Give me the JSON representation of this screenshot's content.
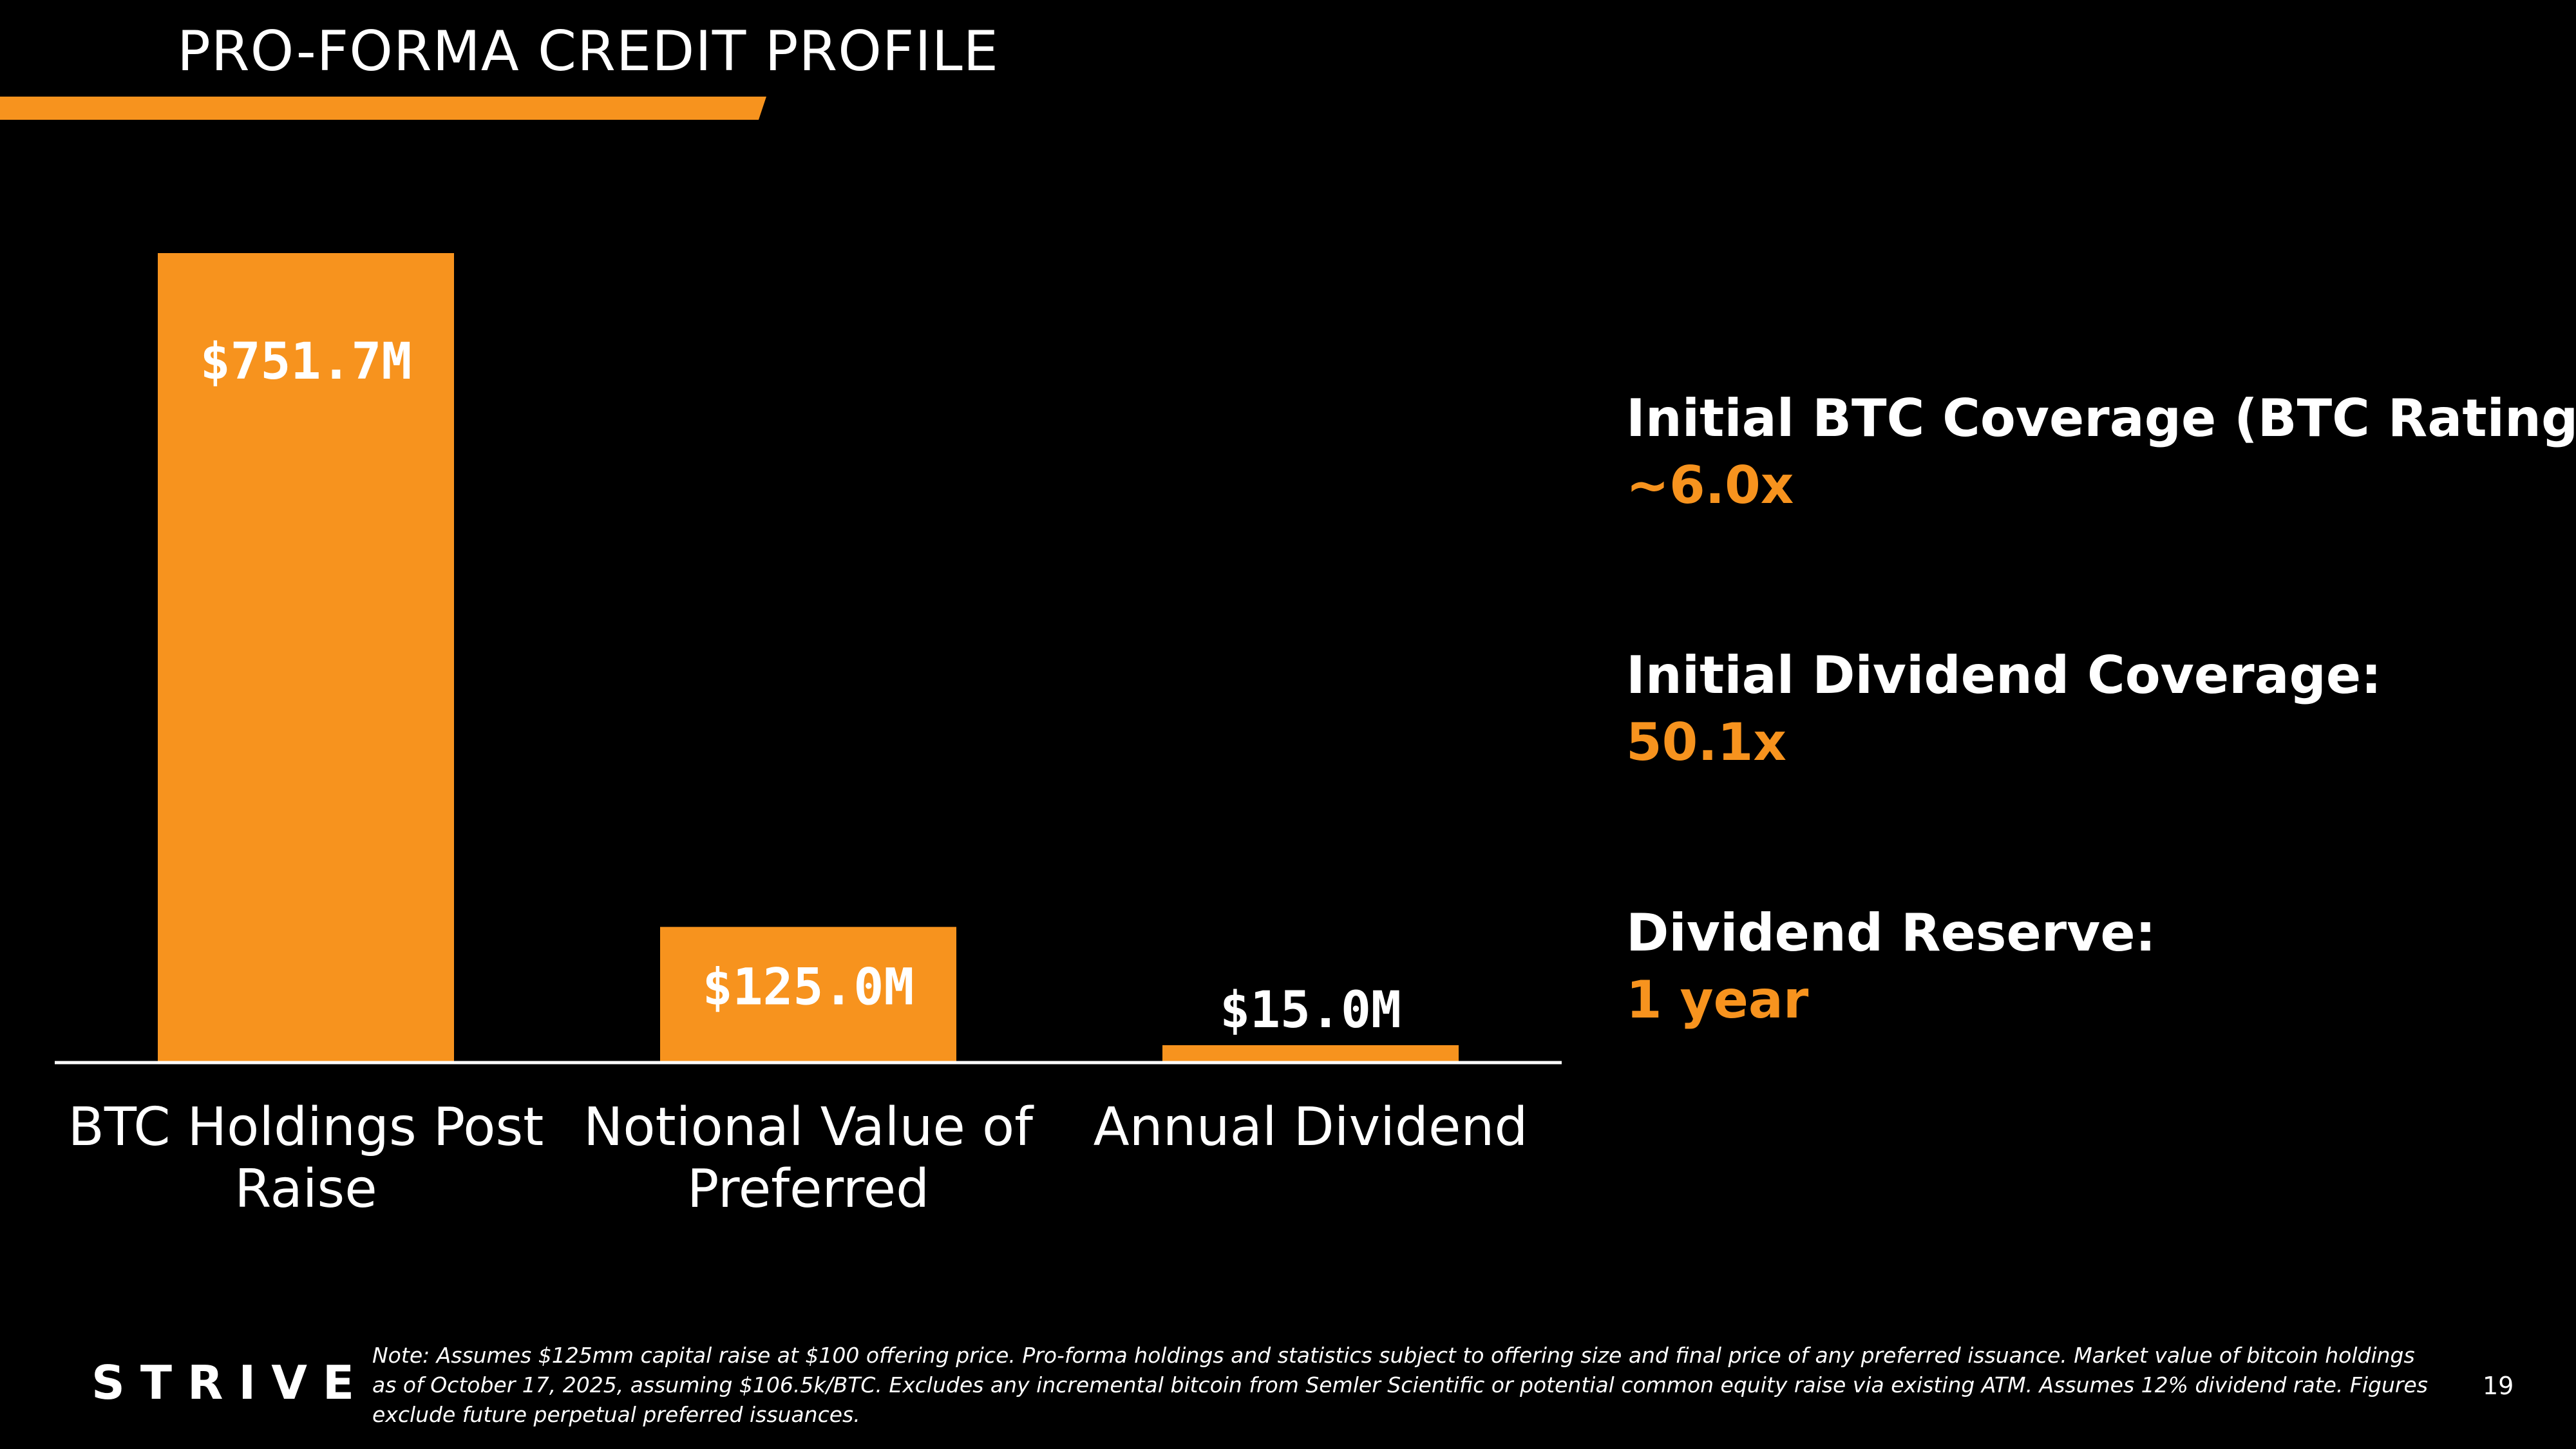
{
  "header": {
    "title": "PRO-FORMA CREDIT PROFILE"
  },
  "colors": {
    "accent": "#f7931e",
    "background": "#000000",
    "text": "#ffffff"
  },
  "chart_data": {
    "type": "bar",
    "categories": [
      "BTC Holdings Post Raise",
      "Notional Value of Preferred",
      "Annual Dividend"
    ],
    "values": [
      751.7,
      125.0,
      15.0
    ],
    "data_labels": [
      "$751.7M",
      "$125.0M",
      "$15.0M"
    ],
    "ylim": [
      0,
      751.7
    ],
    "grid": false,
    "legend": "none"
  },
  "stats": [
    {
      "label": "Initial BTC Coverage (BTC Rating):",
      "value": "~6.0x"
    },
    {
      "label": "Initial Dividend Coverage:",
      "value": "50.1x"
    },
    {
      "label": "Dividend Reserve:",
      "value": "1 year"
    }
  ],
  "footer": {
    "logo_text": "STRIVE",
    "note": "Note: Assumes $125mm capital raise at $100 offering price. Pro-forma holdings and statistics subject to offering size and final price of any preferred issuance. Market value of bitcoin holdings as of October 17, 2025, assuming $106.5k/BTC. Excludes any incremental bitcoin from Semler Scientific or potential common equity raise via existing ATM. Assumes 12% dividend rate. Figures exclude future perpetual preferred issuances.",
    "page_number": "19"
  }
}
